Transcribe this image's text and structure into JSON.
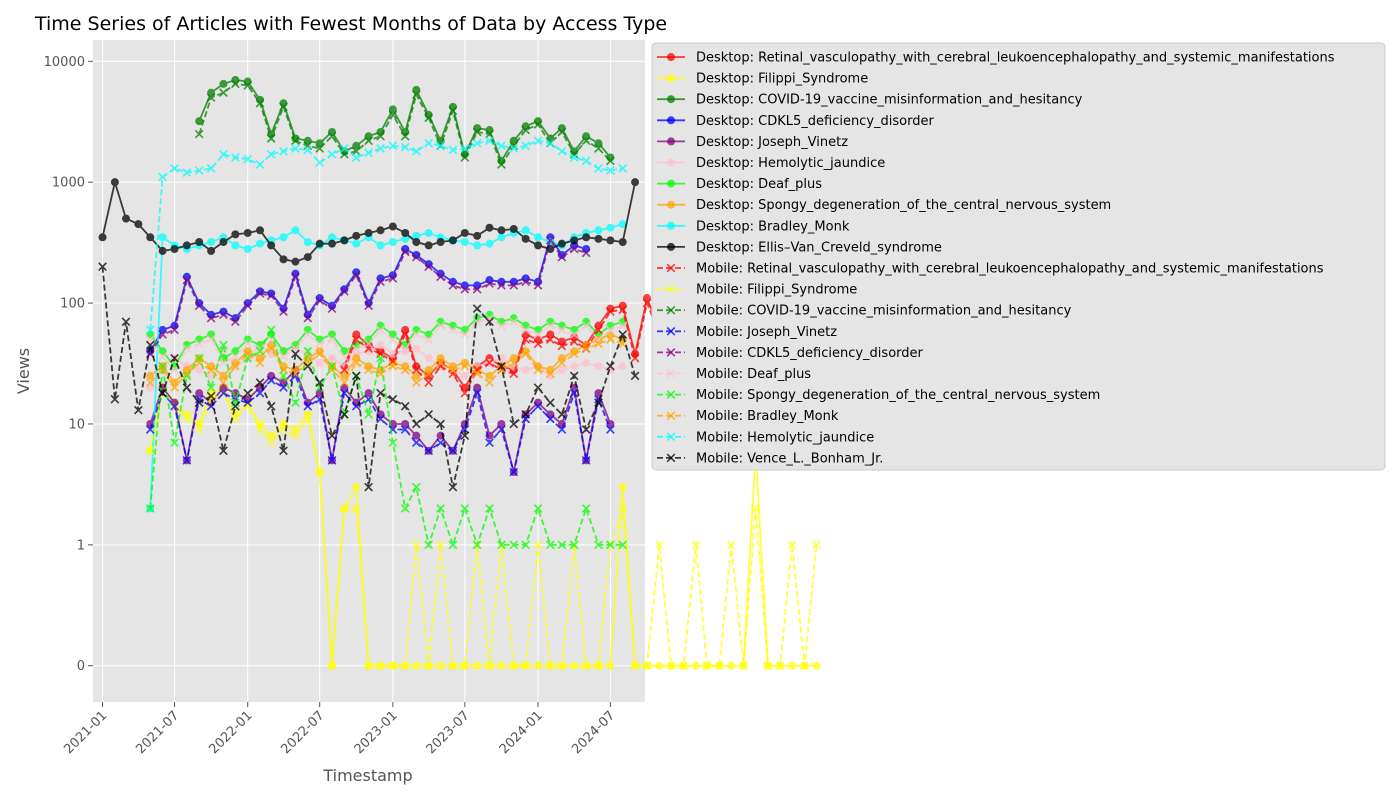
{
  "chart_data": {
    "type": "line",
    "title": "Time Series of Articles with Fewest Months of Data by Access Type",
    "xlabel": "Timestamp",
    "ylabel": "Views",
    "yscale": "symlog",
    "y_ticks": [
      {
        "value": 0,
        "label": "0"
      },
      {
        "value": 1,
        "label": "1"
      },
      {
        "value": 10,
        "label": "10"
      },
      {
        "value": 100,
        "label": "100"
      },
      {
        "value": 1000,
        "label": "1000"
      },
      {
        "value": 10000,
        "label": "10000"
      }
    ],
    "x_ticks": [
      "2021-01",
      "2021-07",
      "2022-01",
      "2022-07",
      "2023-01",
      "2023-07",
      "2024-01",
      "2024-07"
    ],
    "xlim": [
      "2020-12-08",
      "2024-09-26"
    ],
    "ylim": [
      -0.3,
      15000
    ],
    "grid": true,
    "legend_position": "outside-right",
    "series": [
      {
        "name": "Desktop: Retinal_vasculopathy_with_cerebral_leukoencephalopathy_and_systemic_manifestations",
        "color": "#ff0000",
        "marker": "o",
        "dashed": false,
        "start": "2022-09",
        "values": [
          30,
          55,
          45,
          40,
          35,
          60,
          30,
          25,
          32,
          28,
          20,
          30,
          35,
          30,
          28,
          55,
          50,
          55,
          48,
          52,
          45,
          65,
          90,
          95,
          38,
          110,
          60,
          50,
          45,
          65,
          45
        ]
      },
      {
        "name": "Desktop: Filippi_Syndrome",
        "color": "#ffff00",
        "marker": "o",
        "dashed": false,
        "start": "2021-05",
        "values": [
          6,
          20,
          15,
          12,
          10,
          18,
          20,
          12,
          15,
          10,
          8,
          10,
          9,
          12,
          4,
          0,
          2,
          3,
          0,
          0,
          0,
          0,
          0,
          0,
          0,
          0,
          0,
          0,
          0,
          0,
          0,
          0,
          0,
          0,
          0,
          0,
          0,
          0,
          0,
          3,
          0,
          0,
          0,
          0,
          0,
          0,
          0,
          0,
          0,
          0,
          6,
          0,
          0,
          0,
          0,
          0
        ]
      },
      {
        "name": "Desktop: COVID-19_vaccine_misinformation_and_hesitancy",
        "color": "#008000",
        "marker": "o",
        "dashed": false,
        "start": "2021-09",
        "values": [
          3200,
          5500,
          6500,
          7000,
          6800,
          4800,
          2500,
          4500,
          2300,
          2200,
          2100,
          2600,
          1800,
          2000,
          2400,
          2600,
          4000,
          2600,
          5800,
          3600,
          2200,
          4200,
          1700,
          2800,
          2700,
          1500,
          2200,
          2900,
          3200,
          2300,
          2800,
          1800,
          2400,
          2100,
          1600
        ]
      },
      {
        "name": "Desktop: CDKL5_deficiency_disorder",
        "color": "#0000ff",
        "marker": "o",
        "dashed": false,
        "start": "2021-05",
        "values": [
          40,
          60,
          65,
          165,
          100,
          80,
          85,
          75,
          100,
          125,
          120,
          90,
          175,
          80,
          110,
          95,
          130,
          180,
          100,
          160,
          170,
          280,
          250,
          210,
          175,
          150,
          140,
          140,
          155,
          150,
          150,
          160,
          150,
          350,
          250,
          300,
          280
        ]
      },
      {
        "name": "Desktop: Joseph_Vinetz",
        "color": "#800080",
        "marker": "o",
        "dashed": false,
        "start": "2021-05",
        "values": [
          10,
          20,
          15,
          5,
          18,
          15,
          20,
          18,
          16,
          20,
          25,
          22,
          28,
          15,
          18,
          5,
          20,
          15,
          18,
          12,
          10,
          10,
          8,
          6,
          8,
          6,
          10,
          20,
          8,
          10,
          4,
          12,
          15,
          12,
          10,
          20,
          5,
          18,
          10
        ]
      },
      {
        "name": "Desktop: Hemolytic_jaundice",
        "color": "#ffc0cb",
        "marker": "o",
        "dashed": false,
        "start": "2021-05",
        "values": [
          20,
          30,
          35,
          30,
          28,
          25,
          40,
          30,
          35,
          45,
          38,
          40,
          42,
          38,
          32,
          35,
          30,
          38,
          40,
          45,
          38,
          40,
          42,
          35,
          30,
          28,
          25,
          30,
          32,
          35,
          30,
          28,
          30,
          25,
          28,
          30,
          32,
          30,
          28,
          30
        ]
      },
      {
        "name": "Desktop: Deaf_plus",
        "color": "#00ff00",
        "marker": "o",
        "dashed": false,
        "start": "2021-05",
        "values": [
          55,
          40,
          30,
          45,
          50,
          55,
          35,
          40,
          50,
          45,
          55,
          40,
          45,
          60,
          50,
          55,
          40,
          45,
          50,
          65,
          55,
          45,
          60,
          55,
          70,
          65,
          60,
          75,
          80,
          70,
          75,
          65,
          60,
          70,
          65,
          60,
          70,
          55,
          65,
          70
        ]
      },
      {
        "name": "Desktop: Spongy_degeneration_of_the_central_nervous_system",
        "color": "#ffa500",
        "marker": "o",
        "dashed": false,
        "start": "2021-05",
        "values": [
          25,
          30,
          22,
          28,
          35,
          30,
          25,
          32,
          40,
          35,
          45,
          30,
          28,
          35,
          40,
          30,
          25,
          35,
          30,
          28,
          32,
          30,
          25,
          28,
          35,
          30,
          32,
          28,
          25,
          30,
          35,
          40,
          30,
          28,
          35,
          40,
          45,
          50,
          55,
          50
        ]
      },
      {
        "name": "Desktop: Bradley_Monk",
        "color": "#00ffff",
        "marker": "o",
        "dashed": false,
        "start": "2021-05",
        "values": [
          2,
          350,
          300,
          280,
          300,
          320,
          350,
          300,
          280,
          310,
          330,
          350,
          400,
          320,
          300,
          350,
          330,
          310,
          350,
          300,
          320,
          340,
          360,
          380,
          350,
          330,
          320,
          300,
          310,
          350,
          380,
          400,
          350,
          320,
          300,
          350,
          380,
          400,
          420,
          450
        ]
      },
      {
        "name": "Desktop: Ellis–Van_Creveld_syndrome",
        "color": "#000000",
        "marker": "o",
        "dashed": false,
        "start": "2021-01",
        "values": [
          350,
          1000,
          500,
          450,
          350,
          270,
          280,
          300,
          320,
          270,
          320,
          370,
          380,
          400,
          300,
          230,
          220,
          240,
          310,
          310,
          330,
          360,
          380,
          400,
          430,
          380,
          320,
          300,
          320,
          330,
          380,
          360,
          420,
          400,
          410,
          340,
          300,
          280,
          310,
          330,
          350,
          340,
          330,
          320,
          1000
        ]
      },
      {
        "name": "Mobile: Retinal_vasculopathy_with_cerebral_leukoencephalopathy_and_systemic_manifestations",
        "color": "#ff0000",
        "marker": "x",
        "dashed": true,
        "start": "2022-09",
        "values": [
          28,
          50,
          42,
          38,
          33,
          55,
          28,
          22,
          30,
          26,
          18,
          28,
          32,
          28,
          26,
          50,
          46,
          50,
          44,
          48,
          42,
          60,
          85,
          88,
          35,
          100,
          55,
          46,
          42,
          60,
          42
        ]
      },
      {
        "name": "Mobile: Filippi_Syndrome",
        "color": "#ffff00",
        "marker": "x",
        "dashed": true,
        "start": "2021-05",
        "values": [
          6,
          18,
          14,
          11,
          9,
          16,
          18,
          11,
          14,
          9,
          7,
          9,
          8,
          11,
          4,
          0,
          2,
          2,
          0,
          0,
          0,
          0,
          1,
          0,
          1,
          0,
          0,
          1,
          0,
          1,
          0,
          0,
          1,
          0,
          0,
          1,
          0,
          0,
          1,
          2,
          0,
          0,
          1,
          0,
          0,
          1,
          0,
          0,
          1,
          0,
          2,
          0,
          0,
          1,
          0,
          1
        ]
      },
      {
        "name": "Mobile: COVID-19_vaccine_misinformation_and_hesitancy",
        "color": "#008000",
        "marker": "x",
        "dashed": true,
        "start": "2021-09",
        "values": [
          2500,
          5000,
          5500,
          6500,
          6300,
          4500,
          2300,
          4200,
          2200,
          2000,
          1900,
          2400,
          1700,
          1800,
          2200,
          2400,
          3600,
          2400,
          5300,
          3400,
          2000,
          3900,
          1600,
          2600,
          2500,
          1400,
          2000,
          2700,
          3000,
          2100,
          2600,
          1700,
          2200,
          1900,
          1500
        ]
      },
      {
        "name": "Mobile: Joseph_Vinetz",
        "color": "#0000ff",
        "marker": "x",
        "dashed": true,
        "start": "2021-05",
        "values": [
          9,
          18,
          14,
          5,
          16,
          14,
          18,
          16,
          15,
          18,
          23,
          20,
          25,
          14,
          16,
          5,
          18,
          14,
          16,
          11,
          9,
          9,
          7,
          6,
          7,
          6,
          9,
          18,
          7,
          9,
          4,
          11,
          14,
          11,
          9,
          18,
          5,
          16,
          9
        ]
      },
      {
        "name": "Mobile: CDKL5_deficiency_disorder",
        "color": "#800080",
        "marker": "x",
        "dashed": true,
        "start": "2021-05",
        "values": [
          38,
          55,
          60,
          155,
          95,
          75,
          80,
          70,
          95,
          120,
          115,
          85,
          165,
          75,
          105,
          90,
          125,
          170,
          95,
          150,
          160,
          265,
          240,
          200,
          165,
          140,
          130,
          130,
          145,
          140,
          140,
          150,
          140,
          330,
          240,
          280,
          260
        ]
      },
      {
        "name": "Mobile: Deaf_plus",
        "color": "#ffc0cb",
        "marker": "x",
        "dashed": true,
        "start": "2021-05",
        "values": [
          50,
          36,
          28,
          42,
          46,
          50,
          32,
          36,
          46,
          42,
          50,
          36,
          42,
          55,
          46,
          50,
          36,
          42,
          46,
          60,
          50,
          42,
          55,
          50,
          65,
          60,
          55,
          70,
          75,
          65,
          70,
          60,
          55,
          65,
          60,
          55,
          65,
          50,
          60,
          65
        ]
      },
      {
        "name": "Mobile: Spongy_degeneration_of_the_central_nervous_system",
        "color": "#00ff00",
        "marker": "x",
        "dashed": true,
        "start": "2021-05",
        "values": [
          2,
          30,
          7,
          25,
          35,
          20,
          45,
          15,
          35,
          40,
          60,
          25,
          15,
          40,
          20,
          30,
          12,
          25,
          12,
          35,
          7,
          2,
          3,
          1,
          2,
          1,
          2,
          1,
          2,
          1,
          1,
          1,
          2,
          1,
          1,
          1,
          2,
          1,
          1,
          1
        ]
      },
      {
        "name": "Mobile: Bradley_Monk",
        "color": "#ffa500",
        "marker": "x",
        "dashed": true,
        "start": "2021-05",
        "values": [
          22,
          28,
          20,
          26,
          32,
          28,
          22,
          30,
          38,
          32,
          42,
          28,
          26,
          32,
          38,
          28,
          22,
          32,
          28,
          26,
          30,
          28,
          22,
          26,
          32,
          28,
          30,
          26,
          22,
          28,
          32,
          38,
          28,
          26,
          32,
          38,
          42,
          46,
          50,
          46
        ]
      },
      {
        "name": "Mobile: Hemolytic_jaundice",
        "color": "#00ffff",
        "marker": "x",
        "dashed": true,
        "start": "2021-05",
        "values": [
          60,
          1100,
          1300,
          1200,
          1250,
          1300,
          1700,
          1600,
          1550,
          1400,
          1700,
          1800,
          1900,
          1850,
          1450,
          1700,
          1900,
          1600,
          1750,
          1900,
          2000,
          1950,
          1800,
          2100,
          2000,
          1850,
          1900,
          2100,
          2200,
          2000,
          1900,
          2000,
          2200,
          2100,
          1800,
          1600,
          1500,
          1300,
          1250,
          1300
        ]
      },
      {
        "name": "Mobile: Vence_L._Bonham_Jr.",
        "color": "#000000",
        "marker": "x",
        "dashed": true,
        "start": "2021-01",
        "values": [
          200,
          16,
          70,
          13,
          45,
          18,
          35,
          20,
          15,
          17,
          6,
          14,
          18,
          22,
          14,
          6,
          38,
          30,
          22,
          8,
          12,
          25,
          3,
          18,
          16,
          14,
          10,
          12,
          10,
          3,
          8,
          90,
          70,
          30,
          10,
          12,
          20,
          15,
          12,
          25,
          9,
          15,
          30,
          55,
          25
        ]
      }
    ]
  }
}
